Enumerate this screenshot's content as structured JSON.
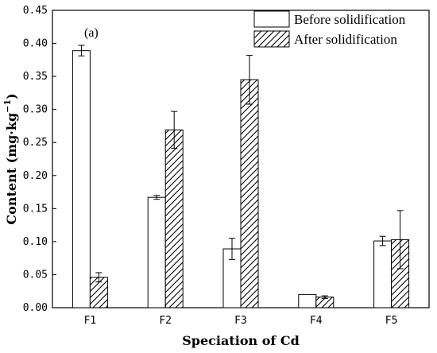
{
  "chart_data": {
    "type": "bar",
    "panel_label": "(a)",
    "xlabel": "Speciation of Cd",
    "ylabel": "Content (mg·kg",
    "ylabel_sup": "−1",
    "ylabel_close": ")",
    "categories": [
      "F1",
      "F2",
      "F3",
      "F4",
      "F5"
    ],
    "ylim": [
      0,
      0.45
    ],
    "yticks": [
      "0.00",
      "0.05",
      "0.10",
      "0.15",
      "0.20",
      "0.25",
      "0.30",
      "0.35",
      "0.40",
      "0.45"
    ],
    "series": [
      {
        "name": "Before solidification",
        "pattern": "none",
        "values": [
          0.389,
          0.167,
          0.089,
          0.02,
          0.101
        ],
        "errors": [
          0.008,
          0.003,
          0.016,
          0.0,
          0.007
        ]
      },
      {
        "name": "After solidification",
        "pattern": "hatch",
        "values": [
          0.046,
          0.269,
          0.345,
          0.016,
          0.103
        ],
        "errors": [
          0.007,
          0.028,
          0.037,
          0.002,
          0.044
        ]
      }
    ],
    "legend_position": "top-right",
    "grid": false
  },
  "colors": {
    "bar_edge": "#000000",
    "bar_fill": "#ffffff",
    "hatch": "#000000"
  }
}
